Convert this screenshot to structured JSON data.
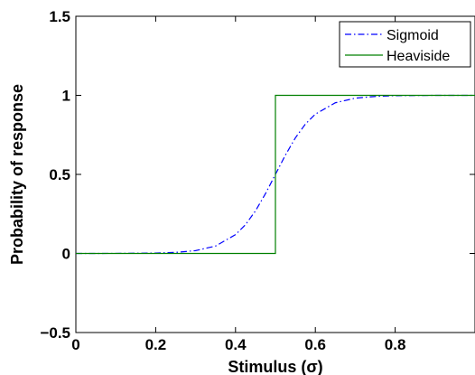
{
  "chart_data": {
    "type": "line",
    "title": "",
    "xlabel": "Stimulus (σ)",
    "ylabel": "Probability of response",
    "xlim": [
      0,
      1
    ],
    "ylim": [
      -0.5,
      1.5
    ],
    "xticks": [
      0,
      0.2,
      0.4,
      0.6,
      0.8,
      1
    ],
    "xtick_labels": [
      "0",
      "0.2",
      "0.4",
      "0.6",
      "0.8",
      ""
    ],
    "yticks": [
      -0.5,
      0,
      0.5,
      1,
      1.5
    ],
    "ytick_labels": [
      "−0.5",
      "0",
      "0.5",
      "1",
      "1.5"
    ],
    "grid": false,
    "legend_position": "top-right",
    "series": [
      {
        "name": "Sigmoid",
        "color": "#0000ff",
        "line_style": "dash-dot",
        "x": [
          0,
          0.1,
          0.2,
          0.25,
          0.3,
          0.35,
          0.4,
          0.425,
          0.45,
          0.475,
          0.5,
          0.525,
          0.55,
          0.575,
          0.6,
          0.65,
          0.7,
          0.75,
          0.8,
          0.9,
          1
        ],
        "y": [
          0,
          0.0003,
          0.0025,
          0.0067,
          0.018,
          0.047,
          0.119,
          0.182,
          0.269,
          0.378,
          0.5,
          0.622,
          0.731,
          0.818,
          0.881,
          0.953,
          0.982,
          0.993,
          0.998,
          1.0,
          1.0
        ]
      },
      {
        "name": "Heaviside",
        "color": "#008000",
        "line_style": "solid",
        "x": [
          0,
          0.5,
          0.5,
          1
        ],
        "y": [
          0,
          0,
          1,
          1
        ]
      }
    ]
  }
}
